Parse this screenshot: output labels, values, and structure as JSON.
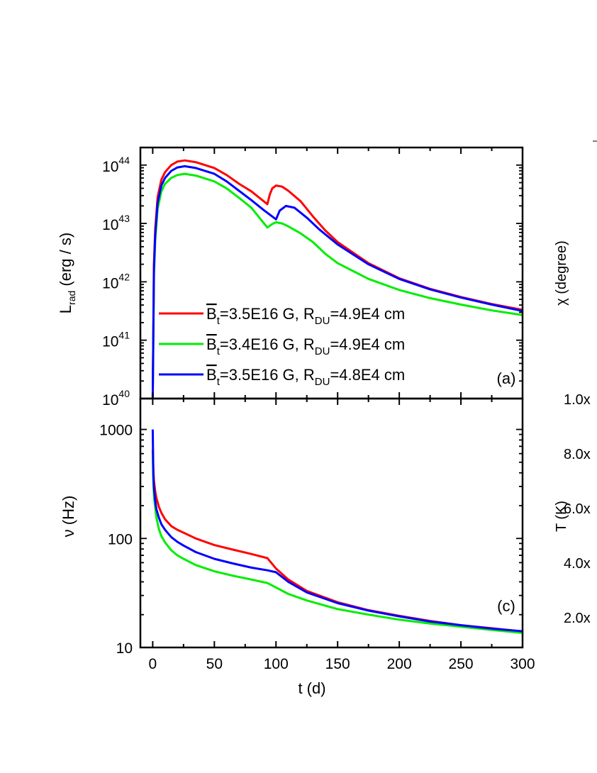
{
  "chart_data": [
    {
      "type": "line",
      "panel_label": "(a)",
      "xlabel": "",
      "ylabel": {
        "main": "L",
        "sub": "rad",
        "unit": " (erg / s)"
      },
      "xlim": [
        -10,
        300
      ],
      "ylim": [
        1e+40,
        2e+44
      ],
      "yscale": "log",
      "xticks": [
        0,
        50,
        100,
        150,
        200,
        250,
        300
      ],
      "yticks": [
        {
          "base": "10",
          "exp": "40"
        },
        {
          "base": "10",
          "exp": "41"
        },
        {
          "base": "10",
          "exp": "42"
        },
        {
          "base": "10",
          "exp": "43"
        },
        {
          "base": "10",
          "exp": "44"
        }
      ],
      "grid": false,
      "legend_position": "bottom-left",
      "series": [
        {
          "name": "B̄t=3.5E16 G, RDU=4.9E4 cm",
          "legend": {
            "sym": "B",
            "sym_sub": "t",
            "v1": "=3.5E16 G, ",
            "sym2": "R",
            "sym2_sub": "DU",
            "v2": "=4.9E4 cm"
          },
          "color": "#ff0000",
          "x": [
            0,
            1,
            2,
            4,
            7,
            10,
            15,
            20,
            26,
            35,
            50,
            60,
            70,
            80,
            93,
            95,
            97,
            100,
            105,
            110,
            120,
            130,
            140,
            150,
            175,
            200,
            225,
            250,
            275,
            300
          ],
          "log10_y": [
            40,
            42.3,
            42.9,
            43.45,
            43.75,
            43.88,
            44.0,
            44.06,
            44.08,
            44.05,
            43.95,
            43.83,
            43.68,
            43.55,
            43.33,
            43.5,
            43.6,
            43.65,
            43.63,
            43.56,
            43.38,
            43.12,
            42.88,
            42.68,
            42.32,
            42.06,
            41.88,
            41.74,
            41.62,
            41.52
          ]
        },
        {
          "name": "B̄t=3.4E16 G, RDU=4.9E4 cm",
          "legend": {
            "sym": "B",
            "sym_sub": "t",
            "v1": "=3.4E16 G, ",
            "sym2": "R",
            "sym2_sub": "DU",
            "v2": "=4.9E4 cm"
          },
          "color": "#00ee00",
          "x": [
            0,
            1,
            2,
            4,
            7,
            10,
            15,
            20,
            26,
            35,
            50,
            60,
            70,
            80,
            93,
            97,
            100,
            105,
            110,
            120,
            130,
            140,
            150,
            175,
            200,
            225,
            250,
            275,
            300
          ],
          "log10_y": [
            40,
            42.1,
            42.7,
            43.25,
            43.55,
            43.68,
            43.78,
            43.83,
            43.85,
            43.82,
            43.72,
            43.6,
            43.44,
            43.27,
            42.93,
            42.99,
            43.02,
            43.0,
            42.95,
            42.83,
            42.68,
            42.48,
            42.32,
            42.05,
            41.86,
            41.72,
            41.61,
            41.51,
            41.43
          ]
        },
        {
          "name": "B̄t=3.5E16 G, RDU=4.8E4 cm",
          "legend": {
            "sym": "B",
            "sym_sub": "t",
            "v1": "=3.5E16 G, ",
            "sym2": "R",
            "sym2_sub": "DU",
            "v2": "=4.8E4 cm"
          },
          "color": "#0000ff",
          "x": [
            0,
            1,
            2,
            4,
            7,
            10,
            15,
            20,
            26,
            35,
            50,
            60,
            70,
            80,
            90,
            100,
            103,
            108,
            115,
            125,
            135,
            150,
            175,
            200,
            225,
            250,
            275,
            300
          ],
          "log10_y": [
            40,
            42.2,
            42.8,
            43.35,
            43.65,
            43.78,
            43.9,
            43.96,
            43.98,
            43.95,
            43.85,
            43.72,
            43.56,
            43.4,
            43.23,
            43.07,
            43.22,
            43.3,
            43.27,
            43.1,
            42.9,
            42.64,
            42.3,
            42.05,
            41.87,
            41.73,
            41.61,
            41.5
          ]
        }
      ]
    },
    {
      "type": "line",
      "panel_label": "(c)",
      "xlabel": "t (d)",
      "ylabel": "ν (Hz)",
      "xlim": [
        -10,
        300
      ],
      "ylim": [
        10,
        1920
      ],
      "yscale": "log",
      "xticks": [
        0,
        50,
        100,
        150,
        200,
        250,
        300
      ],
      "xticklabels": [
        "0",
        "50",
        "100",
        "150",
        "200",
        "250",
        "300"
      ],
      "yticks": [
        10,
        100,
        1000
      ],
      "yticklabels": [
        "10",
        "100",
        "1000"
      ],
      "grid": false,
      "series": [
        {
          "color": "#ff0000",
          "x": [
            0,
            0.5,
            1,
            2,
            3,
            5,
            7,
            10,
            15,
            20,
            25,
            35,
            50,
            65,
            80,
            93,
            95,
            100,
            110,
            125,
            150,
            175,
            200,
            225,
            250,
            275,
            300
          ],
          "y": [
            650,
            420,
            340,
            270,
            235,
            195,
            172,
            150,
            130,
            120,
            113,
            100,
            87,
            79,
            72,
            66,
            62,
            53,
            42,
            33,
            26,
            22,
            19.5,
            17.5,
            16,
            15,
            14
          ]
        },
        {
          "color": "#00ee00",
          "x": [
            0,
            0.5,
            1,
            2,
            3,
            5,
            7,
            10,
            15,
            20,
            25,
            35,
            50,
            65,
            80,
            93,
            100,
            110,
            125,
            150,
            175,
            200,
            225,
            250,
            275,
            300
          ],
          "y": [
            600,
            330,
            250,
            190,
            155,
            122,
            105,
            92,
            78,
            70,
            65,
            57,
            50,
            45.5,
            42,
            39,
            35.5,
            31,
            27,
            22.5,
            20,
            18,
            16.6,
            15.5,
            14.5,
            13.6
          ]
        },
        {
          "color": "#0000ff",
          "x": [
            0,
            0.5,
            1,
            2,
            3,
            5,
            7,
            10,
            15,
            20,
            25,
            35,
            50,
            65,
            80,
            93,
            100,
            110,
            125,
            150,
            175,
            200,
            225,
            250,
            275,
            300
          ],
          "y": [
            1000,
            380,
            290,
            220,
            185,
            155,
            135,
            120,
            103,
            93,
            86,
            75,
            65,
            59,
            54,
            51,
            49,
            40,
            32,
            25.5,
            21.8,
            19.3,
            17.3,
            16,
            14.9,
            14.1
          ]
        }
      ]
    }
  ],
  "right_partial": {
    "top_ylabel": "χ (degree)",
    "bottom_ylabel": "T (K)",
    "tick_labels": [
      "1.0x",
      "8.0x",
      "6.0x",
      "4.0x",
      "2.0x"
    ]
  }
}
